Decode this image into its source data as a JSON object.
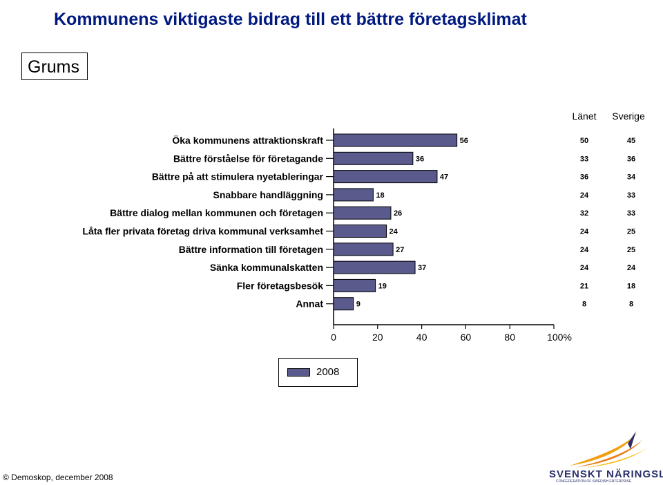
{
  "page": {
    "title": "Kommunens viktigaste bidrag till ett bättre företagsklimat",
    "region": "Grums",
    "footer": "© Demoskop, december 2008"
  },
  "logo": {
    "name": "SVENSKT NÄRINGSLIV",
    "subtitle": "CONFEDERATION OF SWEDISH ENTERPRISE"
  },
  "table_headers": {
    "lanet": "Länet",
    "sverige": "Sverige"
  },
  "colors": {
    "bar": "#5a5a8c",
    "title": "#001a80",
    "logo_flame": "#f0a010"
  },
  "chart_data": {
    "type": "bar",
    "orientation": "horizontal",
    "categories": [
      "Öka kommunens attraktionskraft",
      "Bättre förståelse för företagande",
      "Bättre på att stimulera nyetableringar",
      "Snabbare handläggning",
      "Bättre dialog mellan kommunen och företagen",
      "Låta fler privata företag driva kommunal verksamhet",
      "Bättre information till företagen",
      "Sänka kommunalskatten",
      "Fler företagsbesök",
      "Annat"
    ],
    "series": [
      {
        "name": "2008",
        "values": [
          56,
          36,
          47,
          18,
          26,
          24,
          27,
          37,
          19,
          9
        ]
      }
    ],
    "lanet": [
      50,
      33,
      36,
      24,
      32,
      24,
      24,
      24,
      21,
      8
    ],
    "sverige": [
      45,
      36,
      34,
      33,
      33,
      25,
      25,
      24,
      18,
      8
    ],
    "xlim": [
      0,
      100
    ],
    "xticks": [
      "0",
      "20",
      "40",
      "60",
      "80",
      "100%"
    ],
    "legend": "bottom-center",
    "grid": false
  }
}
